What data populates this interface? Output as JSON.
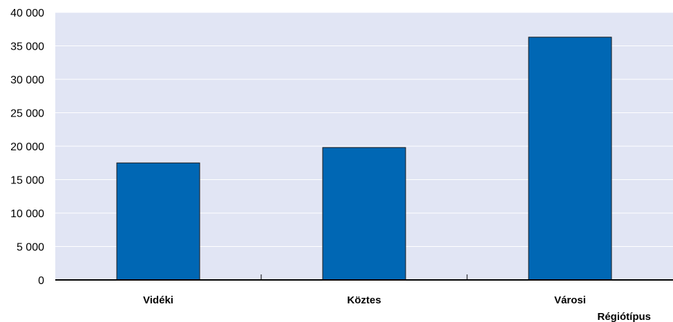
{
  "chart_data": {
    "type": "bar",
    "categories": [
      "Vidéki",
      "Köztes",
      "Városi"
    ],
    "values": [
      17500,
      19800,
      36300
    ],
    "xlabel": "Régiótípus",
    "ylabel": "",
    "ylim": [
      0,
      40000
    ],
    "yticks": [
      0,
      5000,
      10000,
      15000,
      20000,
      25000,
      30000,
      35000,
      40000
    ],
    "ytick_labels": [
      "0",
      "5 000",
      "10 000",
      "15 000",
      "20 000",
      "25 000",
      "30 000",
      "35 000",
      "40 000"
    ],
    "grid": true,
    "colors": {
      "bar": "#0067B4",
      "plot_background": "#E1E5F4",
      "gridline": "#FFFFFF"
    }
  }
}
